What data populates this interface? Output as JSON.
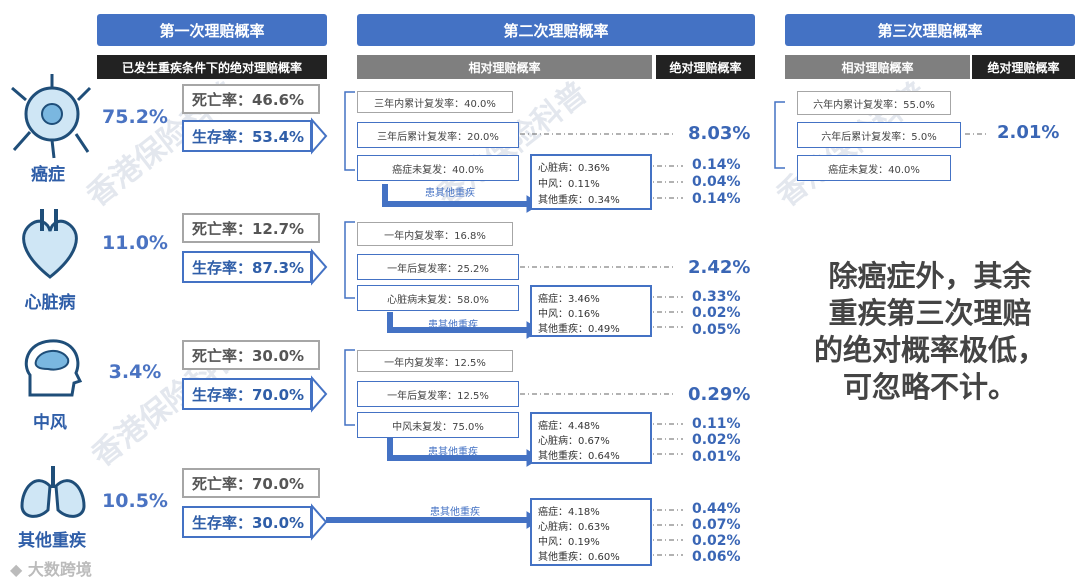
{
  "headers": {
    "first": "第一次理赔概率",
    "second": "第二次理赔概率",
    "third": "第三次理赔概率",
    "first_sub": "已发生重疾条件下的绝对理赔概率",
    "second_rel": "相对理赔概率",
    "second_abs": "绝对理赔概率",
    "third_rel": "相对理赔概率",
    "third_abs": "绝对理赔概率"
  },
  "diseases": [
    {
      "name": "癌症",
      "pct": "75.2%",
      "death": "死亡率：46.6%",
      "survive": "生存率：53.4%"
    },
    {
      "name": "心脏病",
      "pct": "11.0%",
      "death": "死亡率：12.7%",
      "survive": "生存率：87.3%"
    },
    {
      "name": "中风",
      "pct": "3.4%",
      "death": "死亡率：30.0%",
      "survive": "生存率：70.0%"
    },
    {
      "name": "其他重疾",
      "pct": "10.5%",
      "death": "死亡率：70.0%",
      "survive": "生存率：30.0%"
    }
  ],
  "second": {
    "cancer": {
      "within": "三年内累计复发率：40.0%",
      "after": "三年后累计复发率：20.0%",
      "norecur": "癌症未复发：40.0%",
      "other_label": "患其他重疾",
      "abs": "8.03%",
      "subs": [
        "心脏病：0.36%",
        "中风：0.11%",
        "其他重疾：0.34%"
      ],
      "subvals": [
        "0.14%",
        "0.04%",
        "0.14%"
      ]
    },
    "heart": {
      "within": "一年内复发率：16.8%",
      "after": "一年后复发率：25.2%",
      "norecur": "心脏病未复发：58.0%",
      "other_label": "患其他重疾",
      "abs": "2.42%",
      "subs": [
        "癌症：3.46%",
        "中风：0.16%",
        "其他重疾：0.49%"
      ],
      "subvals": [
        "0.33%",
        "0.02%",
        "0.05%"
      ]
    },
    "stroke": {
      "within": "一年内复发率：12.5%",
      "after": "一年后复发率：12.5%",
      "norecur": "中风未复发：75.0%",
      "other_label": "患其他重疾",
      "abs": "0.29%",
      "subs": [
        "癌症：4.48%",
        "心脏病：0.67%",
        "其他重疾：0.64%"
      ],
      "subvals": [
        "0.11%",
        "0.02%",
        "0.01%"
      ]
    },
    "other": {
      "other_label": "患其他重疾",
      "subs": [
        "癌症：4.18%",
        "心脏病：0.63%",
        "中风：0.19%",
        "其他重疾：0.60%"
      ],
      "subvals": [
        "0.44%",
        "0.07%",
        "0.02%",
        "0.06%"
      ]
    }
  },
  "third": {
    "within": "六年内累计复发率：55.0%",
    "after": "六年后累计复发率：5.0%",
    "norecur": "癌症未复发：40.0%",
    "abs": "2.01%"
  },
  "note": [
    "除癌症外，其余",
    "重疾第三次理赔",
    "的绝对概率极低，",
    "可忽略不计。"
  ],
  "watermarks": [
    "香港保险科普",
    "香港保险科普",
    "香港保险科普",
    "香港保险科普"
  ],
  "footer": "大数跨境",
  "colors": {
    "accent": "#4472c4",
    "value": "#3a66b5",
    "gray": "#7f7f7f"
  }
}
